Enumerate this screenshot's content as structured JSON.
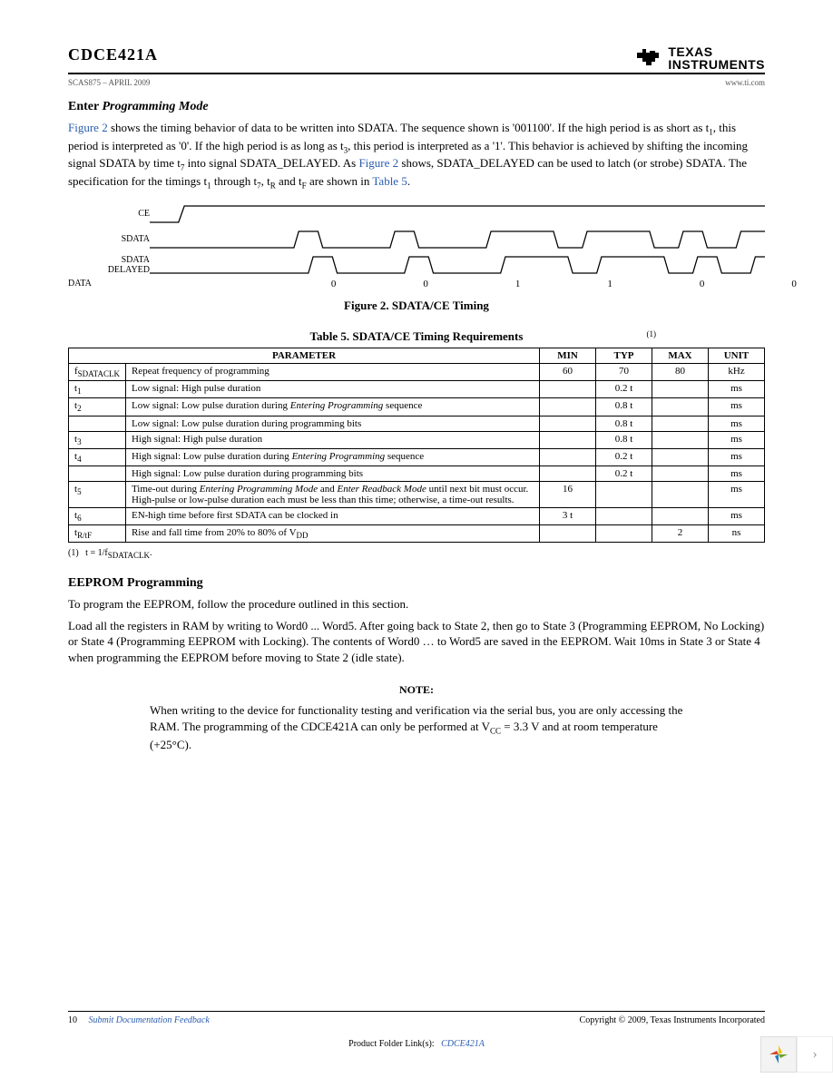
{
  "header": {
    "part_number": "CDCE421A",
    "doc_code": "SCAS875 – APRIL 2009",
    "url": "www.ti.com",
    "brand_line1": "TEXAS",
    "brand_line2": "INSTRUMENTS"
  },
  "enter_prog": {
    "title_prefix": "Enter",
    "title_italic": "Programming Mode",
    "fig_ref1": "Figure 2",
    "p1a": " shows the timing behavior of data to be written into SDATA. The sequence shown is '001100'. If the high period is as short as t",
    "p1sub1": "1",
    "p1b": ", this period is interpreted as '0'. If the high period is as long as t",
    "p1sub2": "3",
    "p1c": ", this period is interpreted as a '1'. This behavior is achieved by shifting the incoming signal SDATA by time t",
    "p1sub3": "7",
    "p1d": " into signal SDATA_DELAYED. As ",
    "fig_ref2": "Figure 2",
    "p1e": " shows, SDATA_DELAYED can be used to latch (or strobe) SDATA. The specification for the timings t",
    "p1sub4": "1",
    "p1f": " through t",
    "p1sub5": "7",
    "p1g": ", t",
    "p1sub6": "R",
    "p1h": " and t",
    "p1sub7": "F",
    "p1i": " are shown in ",
    "table_ref": "Table 5",
    "p1j": "."
  },
  "timing_diagram": {
    "labels": {
      "ce": "CE",
      "sdata": "SDATA",
      "sdata_del1": "SDATA",
      "sdata_del2": "DELAYED",
      "data": "DATA"
    },
    "bits": [
      "0",
      "0",
      "1",
      "1",
      "0",
      "0"
    ],
    "caption": "Figure 2. SDATA/CE Timing"
  },
  "table5": {
    "title": "Table 5. SDATA/CE Timing Requirements",
    "sup_marker": "(1)",
    "headers": {
      "param": "PARAMETER",
      "min": "MIN",
      "typ": "TYP",
      "max": "MAX",
      "unit": "UNIT"
    },
    "rows": [
      {
        "sym_pre": "f",
        "sym_sub": "SDATACLK",
        "desc": "Repeat frequency of programming",
        "min": "60",
        "typ": "70",
        "max": "80",
        "unit": "kHz"
      },
      {
        "sym_pre": "t",
        "sym_sub": "1",
        "desc": "Low signal: High pulse duration",
        "min": "",
        "typ": "0.2 t",
        "max": "",
        "unit": "ms"
      },
      {
        "sym_pre": "t",
        "sym_sub": "2",
        "desc": "Low signal: Low pulse duration during Entering Programming sequence",
        "min": "",
        "typ": "0.8 t",
        "max": "",
        "unit": "ms",
        "ital": true
      },
      {
        "sym_pre": "",
        "sym_sub": "",
        "desc": "Low signal: Low pulse duration during programming bits",
        "min": "",
        "typ": "0.8 t",
        "max": "",
        "unit": "ms"
      },
      {
        "sym_pre": "t",
        "sym_sub": "3",
        "desc": "High signal: High pulse duration",
        "min": "",
        "typ": "0.8 t",
        "max": "",
        "unit": "ms"
      },
      {
        "sym_pre": "t",
        "sym_sub": "4",
        "desc": "High signal: Low pulse duration during Entering Programming sequence",
        "min": "",
        "typ": "0.2 t",
        "max": "",
        "unit": "ms",
        "ital": true
      },
      {
        "sym_pre": "",
        "sym_sub": "",
        "desc": "High signal: Low pulse duration during programming bits",
        "min": "",
        "typ": "0.2 t",
        "max": "",
        "unit": "ms"
      },
      {
        "sym_pre": "t",
        "sym_sub": "5",
        "desc": "Time-out during Entering Programming Mode and Enter Readback Mode until next bit must occur. High-pulse or low-pulse duration each must be less than this time; otherwise, a time-out results.",
        "min": "16",
        "typ": "",
        "max": "",
        "unit": "ms",
        "ital": true
      },
      {
        "sym_pre": "t",
        "sym_sub": "6",
        "desc": "EN-high time before first SDATA can be clocked in",
        "min": "3 t",
        "typ": "",
        "max": "",
        "unit": "ms"
      },
      {
        "sym_pre": "t",
        "sym_sub": "R/tF",
        "desc": "Rise and fall time from 20% to 80% of V",
        "desc_sub": "DD",
        "min": "",
        "typ": "",
        "max": "2",
        "unit": "ns"
      }
    ],
    "footnote_marker": "(1)",
    "footnote_text": "t = 1/f",
    "footnote_sub": "SDATACLK",
    "footnote_end": "."
  },
  "eeprom": {
    "title": "EEPROM Programming",
    "p1": "To program the EEPROM, follow the procedure outlined in this section.",
    "p2": "Load all the registers in RAM by writing to Word0 ... Word5. After going back to State 2, then go to State 3 (Programming EEPROM, No Locking) or State 4 (Programming EEPROM with Locking). The contents of Word0 … to Word5 are saved in the EEPROM. Wait 10ms in State 3 or State 4 when programming the EEPROM before moving to State 2 (idle state)."
  },
  "note": {
    "label": "NOTE:",
    "text_a": "When writing to the device for functionality testing and verification via the serial bus, you are only accessing the RAM. The programming of the CDCE421A can only be performed at V",
    "sub": "CC",
    "text_b": " = 3.3 V and at room temperature (+25°C)."
  },
  "footer": {
    "page": "10",
    "feedback": "Submit Documentation Feedback",
    "copyright": "Copyright © 2009, Texas Instruments Incorporated",
    "pf_label": "Product Folder Link(s):",
    "pf_link": "CDCE421A"
  }
}
